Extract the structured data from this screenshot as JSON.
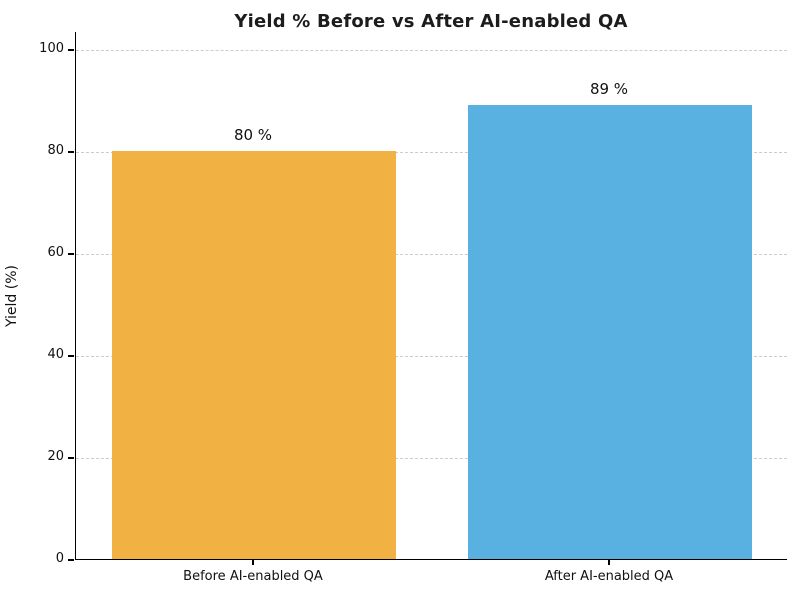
{
  "chart_data": {
    "type": "bar",
    "title": "Yield % Before vs After AI-enabled QA",
    "xlabel": "",
    "ylabel": "Yield (%)",
    "categories": [
      "Before AI-enabled QA",
      "After AI-enabled QA"
    ],
    "values": [
      80,
      89
    ],
    "bar_value_labels": [
      "80 %",
      "89 %"
    ],
    "bar_colors": [
      "#F1B243",
      "#58B1E1"
    ],
    "yticks": [
      0,
      20,
      40,
      60,
      80,
      100
    ],
    "ylim": [
      0,
      103.5
    ],
    "grid": "horizontal-dashed",
    "gridline_color": "#cccccc",
    "legend_position": "none"
  }
}
